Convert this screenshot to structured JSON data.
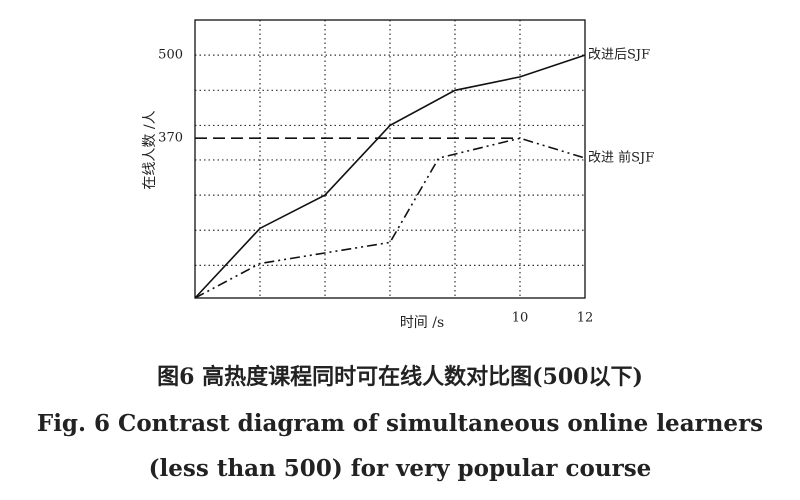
{
  "chart_data": {
    "type": "line",
    "ylabel": "在线人数 /人",
    "xlabel": "时间 /s",
    "caption_cn": "图6  高热度课程同时可在线人数对比图(500以下)",
    "caption_en_1": "Fig. 6  Contrast diagram of simultaneous online learners",
    "caption_en_2": "(less than 500) for very popular course",
    "xlim": [
      0,
      12
    ],
    "xticks": [
      10,
      12
    ],
    "xgrid": [
      2,
      4,
      6,
      8,
      10
    ],
    "ylim": [
      120,
      555
    ],
    "yticks": [
      370,
      500
    ],
    "ygrid": [
      171,
      226,
      281,
      336,
      390,
      445,
      500
    ],
    "grid": true,
    "series": [
      {
        "name": "改进后SJF",
        "color": "#111",
        "style": "solid",
        "x": [
          0,
          2,
          4,
          6,
          8,
          10,
          12
        ],
        "values": [
          120,
          229,
          281,
          390,
          445,
          466,
          500
        ]
      },
      {
        "name": "改进 前SJF",
        "color": "#111",
        "style": "dashdot",
        "x": [
          0,
          2,
          6,
          7.5,
          10,
          12
        ],
        "values": [
          120,
          174,
          207,
          339,
          370,
          339
        ]
      },
      {
        "color": "#111",
        "style": "dashed",
        "x": [
          0,
          10
        ],
        "values": [
          370,
          370
        ]
      }
    ]
  }
}
